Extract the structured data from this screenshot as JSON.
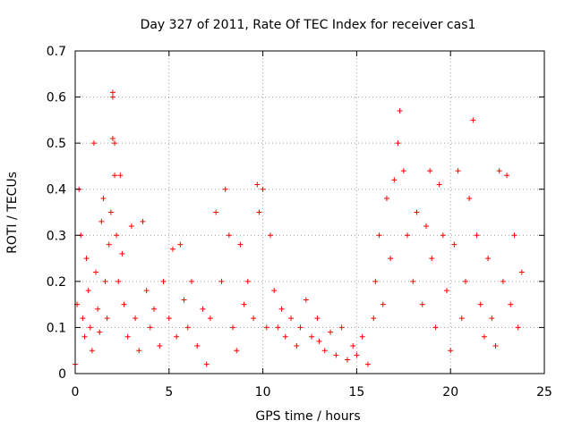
{
  "chart_data": {
    "type": "scatter",
    "title": "Day 327 of 2011, Rate Of TEC Index for receiver cas1",
    "xlabel": "GPS time / hours",
    "ylabel": "ROTI / TECUs",
    "xlim": [
      0,
      25
    ],
    "ylim": [
      0,
      0.7
    ],
    "xticks": [
      0,
      5,
      10,
      15,
      20,
      25
    ],
    "xtick_labels": [
      "0",
      "5",
      "10",
      "15",
      "20",
      "25"
    ],
    "yticks": [
      0,
      0.1,
      0.2,
      0.3,
      0.4,
      0.5,
      0.6,
      0.7
    ],
    "ytick_labels": [
      "0",
      "0.1",
      "0.2",
      "0.3",
      "0.4",
      "0.5",
      "0.6",
      "0.7"
    ],
    "grid": true,
    "marker": "+",
    "color": "#ff0000",
    "series": [
      {
        "name": "cas1",
        "points": [
          [
            0.0,
            0.02
          ],
          [
            0.1,
            0.15
          ],
          [
            0.2,
            0.4
          ],
          [
            0.3,
            0.3
          ],
          [
            0.4,
            0.12
          ],
          [
            0.5,
            0.08
          ],
          [
            0.6,
            0.25
          ],
          [
            0.7,
            0.18
          ],
          [
            0.8,
            0.1
          ],
          [
            0.9,
            0.05
          ],
          [
            1.0,
            0.5
          ],
          [
            1.1,
            0.22
          ],
          [
            1.2,
            0.14
          ],
          [
            1.3,
            0.09
          ],
          [
            1.4,
            0.33
          ],
          [
            1.5,
            0.38
          ],
          [
            1.6,
            0.2
          ],
          [
            1.7,
            0.12
          ],
          [
            1.8,
            0.28
          ],
          [
            1.9,
            0.35
          ],
          [
            2.0,
            0.61
          ],
          [
            2.0,
            0.6
          ],
          [
            2.0,
            0.51
          ],
          [
            2.1,
            0.5
          ],
          [
            2.1,
            0.43
          ],
          [
            2.2,
            0.3
          ],
          [
            2.3,
            0.2
          ],
          [
            2.4,
            0.43
          ],
          [
            2.5,
            0.26
          ],
          [
            2.6,
            0.15
          ],
          [
            2.8,
            0.08
          ],
          [
            3.0,
            0.32
          ],
          [
            3.2,
            0.12
          ],
          [
            3.4,
            0.05
          ],
          [
            3.6,
            0.33
          ],
          [
            3.8,
            0.18
          ],
          [
            4.0,
            0.1
          ],
          [
            4.2,
            0.14
          ],
          [
            4.5,
            0.06
          ],
          [
            4.7,
            0.2
          ],
          [
            5.0,
            0.12
          ],
          [
            5.2,
            0.27
          ],
          [
            5.4,
            0.08
          ],
          [
            5.6,
            0.28
          ],
          [
            5.8,
            0.16
          ],
          [
            6.0,
            0.1
          ],
          [
            6.2,
            0.2
          ],
          [
            6.5,
            0.06
          ],
          [
            6.8,
            0.14
          ],
          [
            7.0,
            0.02
          ],
          [
            7.2,
            0.12
          ],
          [
            7.5,
            0.35
          ],
          [
            7.8,
            0.2
          ],
          [
            8.0,
            0.4
          ],
          [
            8.2,
            0.3
          ],
          [
            8.4,
            0.1
          ],
          [
            8.6,
            0.05
          ],
          [
            8.8,
            0.28
          ],
          [
            9.0,
            0.15
          ],
          [
            9.2,
            0.2
          ],
          [
            9.5,
            0.12
          ],
          [
            9.7,
            0.41
          ],
          [
            9.8,
            0.35
          ],
          [
            10.0,
            0.4
          ],
          [
            10.2,
            0.1
          ],
          [
            10.4,
            0.3
          ],
          [
            10.6,
            0.18
          ],
          [
            10.8,
            0.1
          ],
          [
            11.0,
            0.14
          ],
          [
            11.2,
            0.08
          ],
          [
            11.5,
            0.12
          ],
          [
            11.8,
            0.06
          ],
          [
            12.0,
            0.1
          ],
          [
            12.3,
            0.16
          ],
          [
            12.6,
            0.08
          ],
          [
            12.9,
            0.12
          ],
          [
            13.0,
            0.07
          ],
          [
            13.3,
            0.05
          ],
          [
            13.6,
            0.09
          ],
          [
            13.9,
            0.04
          ],
          [
            14.2,
            0.1
          ],
          [
            14.5,
            0.03
          ],
          [
            14.8,
            0.06
          ],
          [
            15.0,
            0.04
          ],
          [
            15.3,
            0.08
          ],
          [
            15.6,
            0.02
          ],
          [
            15.9,
            0.12
          ],
          [
            16.0,
            0.2
          ],
          [
            16.2,
            0.3
          ],
          [
            16.4,
            0.15
          ],
          [
            16.6,
            0.38
          ],
          [
            16.8,
            0.25
          ],
          [
            17.0,
            0.42
          ],
          [
            17.2,
            0.5
          ],
          [
            17.3,
            0.57
          ],
          [
            17.5,
            0.44
          ],
          [
            17.7,
            0.3
          ],
          [
            18.0,
            0.2
          ],
          [
            18.2,
            0.35
          ],
          [
            18.5,
            0.15
          ],
          [
            18.7,
            0.32
          ],
          [
            18.9,
            0.44
          ],
          [
            19.0,
            0.25
          ],
          [
            19.2,
            0.1
          ],
          [
            19.4,
            0.41
          ],
          [
            19.6,
            0.3
          ],
          [
            19.8,
            0.18
          ],
          [
            20.0,
            0.05
          ],
          [
            20.2,
            0.28
          ],
          [
            20.4,
            0.44
          ],
          [
            20.6,
            0.12
          ],
          [
            20.8,
            0.2
          ],
          [
            21.0,
            0.38
          ],
          [
            21.2,
            0.55
          ],
          [
            21.4,
            0.3
          ],
          [
            21.6,
            0.15
          ],
          [
            21.8,
            0.08
          ],
          [
            22.0,
            0.25
          ],
          [
            22.2,
            0.12
          ],
          [
            22.4,
            0.06
          ],
          [
            22.6,
            0.44
          ],
          [
            22.8,
            0.2
          ],
          [
            23.0,
            0.43
          ],
          [
            23.2,
            0.15
          ],
          [
            23.4,
            0.3
          ],
          [
            23.6,
            0.1
          ],
          [
            23.8,
            0.22
          ]
        ]
      }
    ]
  }
}
